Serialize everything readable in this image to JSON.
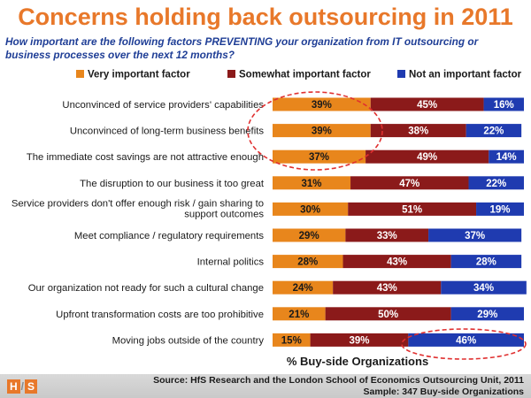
{
  "title": "Concerns holding back outsourcing in 2011",
  "subtitle": "How important are the following factors PREVENTING your organization from IT outsourcing or business processes over the next 12 months?",
  "colors": {
    "very": "#e8861c",
    "somewhat": "#8b1a1a",
    "not": "#1f3bb0",
    "highlight": "#e03030"
  },
  "chart_data": {
    "type": "bar",
    "orientation": "horizontal",
    "stacked": true,
    "categories": [
      "Unconvinced of service providers' capabilities",
      "Unconvinced of long-term business benefits",
      "The  immediate cost savings are not attractive enough",
      "The disruption to our business it too great",
      "Service providers don't offer enough risk / gain sharing to support outcomes",
      "Meet compliance / regulatory requirements",
      "Internal politics",
      "Our organization not ready for such a cultural change",
      "Upfront transformation costs are too prohibitive",
      "Moving jobs outside of the country"
    ],
    "series": [
      {
        "name": "Very important factor",
        "values": [
          39,
          39,
          37,
          31,
          30,
          29,
          28,
          24,
          21,
          15
        ]
      },
      {
        "name": "Somewhat important factor",
        "values": [
          45,
          38,
          49,
          47,
          51,
          33,
          43,
          43,
          50,
          39
        ]
      },
      {
        "name": "Not an important factor",
        "values": [
          16,
          22,
          14,
          22,
          19,
          37,
          28,
          34,
          29,
          46
        ]
      }
    ],
    "xlabel": "% Buy-side Organizations",
    "legend_position": "top",
    "annotations": [
      "dashed ellipse around Very important values of first three rows",
      "dashed ellipse around Not an important value of last row"
    ]
  },
  "footer": {
    "logo_left": "H",
    "logo_mid": "/",
    "logo_right": "S",
    "source": "Source:  HfS Research and the London School of Economics Outsourcing Unit, 2011",
    "sample": "Sample: 347 Buy-side Organizations"
  }
}
